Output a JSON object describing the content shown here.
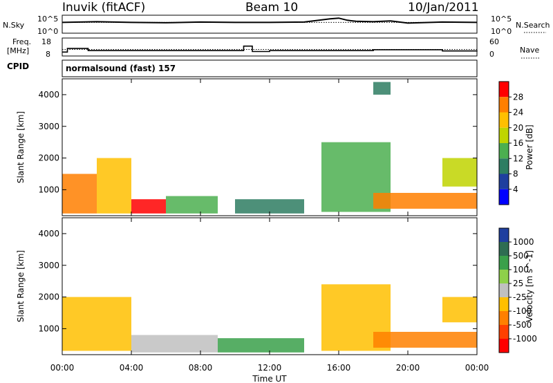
{
  "header": {
    "station": "Inuvik (fitACF)",
    "beam": "Beam 10",
    "date": "10/Jan/2011"
  },
  "noise_panel": {
    "left_label": "N.Sky",
    "right_label": "N.Search",
    "left_ticks": [
      "10^5",
      "10^0"
    ],
    "right_ticks": [
      "10^5",
      "10^0"
    ]
  },
  "freq_panel": {
    "left_label_1": "Freq.",
    "left_label_2": "[MHz]",
    "left_ticks": [
      "18",
      "8"
    ],
    "right_label": "Nave",
    "right_ticks": [
      "60",
      "0"
    ]
  },
  "cpid": {
    "label": "CPID",
    "value": "normalsound (fast) 157"
  },
  "axes": {
    "ylabel": "Slant Range [km]",
    "y_ticks": [
      "1000",
      "2000",
      "3000",
      "4000"
    ],
    "x_ticks": [
      "00:00",
      "04:00",
      "08:00",
      "12:00",
      "16:00",
      "20:00",
      "00:00"
    ],
    "xlabel": "Time UT"
  },
  "power_scale": {
    "label": "Power [dB]",
    "ticks": [
      "28",
      "24",
      "20",
      "16",
      "12",
      "8",
      "4"
    ],
    "colors": [
      "#ff0000",
      "#ff7f00",
      "#ffbf00",
      "#bfd400",
      "#4caf50",
      "#2e7d62",
      "#1f3f9f",
      "#0000ff"
    ]
  },
  "velocity_scale": {
    "label": "Velocity [m s^-1]",
    "ticks": [
      "1000",
      "500",
      "100",
      "25",
      "-25",
      "-100",
      "-500",
      "-1000"
    ],
    "colors": [
      "#1f3f9f",
      "#2e6d52",
      "#3aa04a",
      "#8ed04a",
      "#c0c0c0",
      "#ffbf00",
      "#ff8000",
      "#ff4000",
      "#ff0000"
    ]
  },
  "chart_data": [
    {
      "type": "line",
      "title": "N.Sky / N.Search noise",
      "x": [
        0,
        2,
        4,
        6,
        8,
        10,
        12,
        14,
        15.5,
        16,
        16.5,
        17,
        18,
        19,
        20,
        22,
        24
      ],
      "series": [
        {
          "name": "N.Sky",
          "values": [
            3.0,
            3.2,
            3.0,
            2.9,
            3.1,
            3.0,
            3.0,
            3.1,
            4.0,
            4.2,
            3.6,
            3.3,
            3.2,
            3.4,
            2.8,
            3.1,
            3.0
          ]
        },
        {
          "name": "N.Search",
          "values": [
            3.0,
            3.0,
            3.0,
            3.0,
            3.0,
            3.0,
            3.0,
            3.0,
            3.0,
            3.0,
            3.0,
            3.0,
            3.0,
            3.0,
            3.0,
            3.0,
            3.0
          ]
        }
      ]
    },
    {
      "type": "line",
      "title": "Freq. / Nave",
      "x": [
        0,
        0.3,
        1.5,
        10.5,
        11.0,
        12.0,
        18.0,
        22.0,
        24.0
      ],
      "series": [
        {
          "name": "Freq.",
          "values": [
            10.2,
            12.2,
            11.0,
            13.5,
            10.5,
            11.0,
            11.5,
            10.8,
            11.0
          ]
        },
        {
          "name": "Nave",
          "values": [
            22,
            22,
            22,
            22,
            22,
            22,
            22,
            22,
            22
          ]
        }
      ]
    },
    {
      "type": "heatmap",
      "title": "Power [dB]",
      "xlabel": "Time UT",
      "ylabel": "Slant Range [km]",
      "xlim": [
        0,
        24
      ],
      "ylim": [
        180,
        4500
      ],
      "regions": [
        {
          "t0": 0.0,
          "t1": 2.0,
          "r0": 250,
          "r1": 1500,
          "value": 27
        },
        {
          "t0": 2.0,
          "t1": 4.0,
          "r0": 250,
          "r1": 2000,
          "value": 22
        },
        {
          "t0": 4.0,
          "t1": 6.0,
          "r0": 250,
          "r1": 700,
          "value": 29
        },
        {
          "t0": 6.0,
          "t1": 9.0,
          "r0": 250,
          "r1": 800,
          "value": 12
        },
        {
          "t0": 10.0,
          "t1": 14.0,
          "r0": 250,
          "r1": 700,
          "value": 10
        },
        {
          "t0": 15.0,
          "t1": 19.0,
          "r0": 300,
          "r1": 2500,
          "value": 12
        },
        {
          "t0": 18.0,
          "t1": 24.0,
          "r0": 400,
          "r1": 900,
          "value": 27
        },
        {
          "t0": 18.0,
          "t1": 19.0,
          "r0": 4000,
          "r1": 4400,
          "value": 10
        },
        {
          "t0": 22.0,
          "t1": 24.0,
          "r0": 1100,
          "r1": 2000,
          "value": 16
        }
      ]
    },
    {
      "type": "heatmap",
      "title": "Velocity [m s^-1]",
      "xlabel": "Time UT",
      "ylabel": "Slant Range [km]",
      "xlim": [
        0,
        24
      ],
      "ylim": [
        180,
        4500
      ],
      "regions": [
        {
          "t0": 0.0,
          "t1": 4.0,
          "r0": 300,
          "r1": 2000,
          "value": -100
        },
        {
          "t0": 4.0,
          "t1": 9.0,
          "r0": 250,
          "r1": 800,
          "value": 0
        },
        {
          "t0": 9.0,
          "t1": 14.0,
          "r0": 250,
          "r1": 700,
          "value": 100
        },
        {
          "t0": 15.0,
          "t1": 19.0,
          "r0": 300,
          "r1": 2400,
          "value": -100
        },
        {
          "t0": 18.0,
          "t1": 24.0,
          "r0": 400,
          "r1": 900,
          "value": -500
        },
        {
          "t0": 22.0,
          "t1": 24.0,
          "r0": 1200,
          "r1": 2000,
          "value": -100
        }
      ]
    }
  ]
}
